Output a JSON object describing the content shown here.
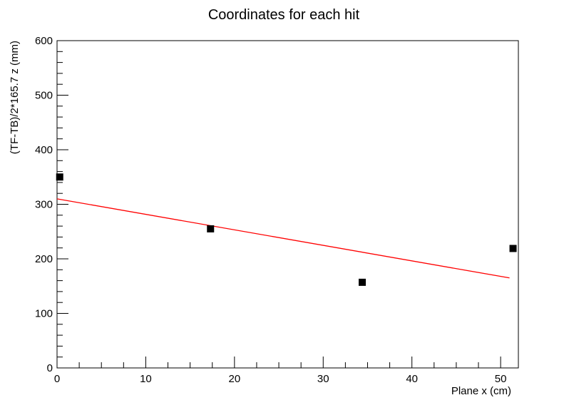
{
  "chart_data": {
    "type": "scatter",
    "title": "Coordinates for each hit",
    "xlabel": "Plane x (cm)",
    "ylabel": "(TF-TB)/2*165.7  z (mm)",
    "xlim": [
      0,
      52
    ],
    "ylim": [
      0,
      600
    ],
    "x_ticks": [
      0,
      10,
      20,
      30,
      40,
      50
    ],
    "y_ticks": [
      0,
      100,
      200,
      300,
      400,
      500,
      600
    ],
    "grid": false,
    "points": [
      {
        "x": 0.3,
        "y": 350
      },
      {
        "x": 17.3,
        "y": 255
      },
      {
        "x": 34.4,
        "y": 157
      },
      {
        "x": 51.4,
        "y": 219
      }
    ],
    "fit_line": {
      "x": [
        0,
        51
      ],
      "y": [
        310,
        165
      ],
      "color": "#ff0000"
    },
    "marker_color": "#000000"
  }
}
